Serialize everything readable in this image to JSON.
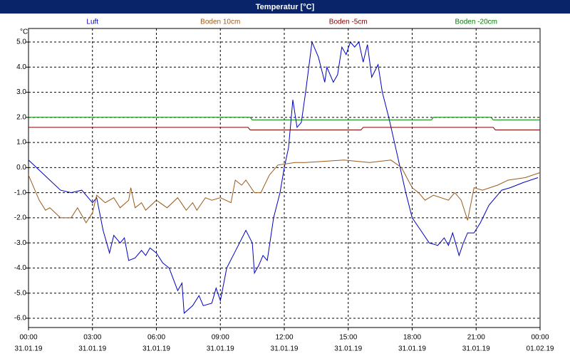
{
  "chart_data": {
    "type": "line",
    "title": "Temperatur [°C]",
    "y_unit": "°C",
    "xlim": [
      0,
      24
    ],
    "ylim": [
      -6.37,
      5.54
    ],
    "grid": true,
    "legend": "top",
    "xticks": [
      {
        "value": 0,
        "label": "00:00",
        "date": "31.01.19"
      },
      {
        "value": 3,
        "label": "03:00",
        "date": "31.01.19"
      },
      {
        "value": 6,
        "label": "06:00",
        "date": "31.01.19"
      },
      {
        "value": 9,
        "label": "09:00",
        "date": "31.01.19"
      },
      {
        "value": 12,
        "label": "12:00",
        "date": "31.01.19"
      },
      {
        "value": 15,
        "label": "15:00",
        "date": "31.01.19"
      },
      {
        "value": 18,
        "label": "18:00",
        "date": "31.01.19"
      },
      {
        "value": 21,
        "label": "21:00",
        "date": "31.01.19"
      },
      {
        "value": 24,
        "label": "00:00",
        "date": "01.02.19"
      }
    ],
    "yticks": [
      {
        "value": 5,
        "label": "5.0"
      },
      {
        "value": 4,
        "label": "4.0"
      },
      {
        "value": 3,
        "label": "3.0"
      },
      {
        "value": 2,
        "label": "2.0"
      },
      {
        "value": 1,
        "label": "1.0"
      },
      {
        "value": 0,
        "label": "0.0"
      },
      {
        "value": -1,
        "label": "-1.0"
      },
      {
        "value": -2,
        "label": "-2.0"
      },
      {
        "value": -3,
        "label": "-3.0"
      },
      {
        "value": -4,
        "label": "-4.0"
      },
      {
        "value": -5,
        "label": "-5.0"
      },
      {
        "value": -6,
        "label": "-6.0"
      }
    ],
    "series": [
      {
        "name": "Luft",
        "color": "#0000c0",
        "x": [
          0,
          0.5,
          1,
          1.5,
          2,
          2.5,
          3,
          3.2,
          3.5,
          3.8,
          4,
          4.3,
          4.5,
          4.7,
          5,
          5.3,
          5.5,
          5.7,
          6,
          6.3,
          6.6,
          7,
          7.2,
          7.3,
          7.7,
          8,
          8.2,
          8.6,
          8.8,
          9,
          9.3,
          9.6,
          9.9,
          10.2,
          10.5,
          10.6,
          10.8,
          11,
          11.2,
          11.5,
          11.8,
          12,
          12.2,
          12.4,
          12.6,
          12.8,
          13,
          13.3,
          13.6,
          13.9,
          14,
          14.3,
          14.5,
          14.7,
          14.9,
          15.1,
          15.3,
          15.5,
          15.7,
          15.9,
          16.1,
          16.4,
          16.6,
          16.9,
          17.3,
          17.7,
          18,
          18.4,
          18.8,
          19.2,
          19.5,
          19.7,
          19.9,
          20.2,
          20.4,
          20.6,
          20.9,
          21.2,
          21.6,
          22.2,
          22.6,
          23.2,
          23.9
        ],
        "values": [
          0.3,
          -0.1,
          -0.5,
          -0.9,
          -1.0,
          -0.9,
          -1.4,
          -1.2,
          -2.5,
          -3.4,
          -2.7,
          -3.0,
          -2.8,
          -3.7,
          -3.6,
          -3.3,
          -3.5,
          -3.2,
          -3.4,
          -3.8,
          -4.0,
          -4.9,
          -4.6,
          -5.8,
          -5.5,
          -5.1,
          -5.5,
          -5.4,
          -4.8,
          -5.3,
          -4.0,
          -3.5,
          -3.0,
          -2.5,
          -3.0,
          -4.2,
          -3.9,
          -3.5,
          -3.7,
          -2.0,
          -1.0,
          0.0,
          0.8,
          2.7,
          1.6,
          1.8,
          3.0,
          5.0,
          4.4,
          3.4,
          4.0,
          3.4,
          3.7,
          4.8,
          4.5,
          5.0,
          4.8,
          5.0,
          4.2,
          4.9,
          3.6,
          4.1,
          3.0,
          2.0,
          0.5,
          -1.0,
          -2.0,
          -2.5,
          -3.0,
          -3.1,
          -2.8,
          -3.1,
          -2.6,
          -3.5,
          -3.0,
          -2.6,
          -2.6,
          -2.2,
          -1.5,
          -0.9,
          -0.8,
          -0.6,
          -0.4
        ]
      },
      {
        "name": "Boden 10cm",
        "color": "#9b5a1a",
        "x": [
          0,
          0.5,
          0.8,
          1,
          1.5,
          2,
          2.3,
          2.7,
          3,
          3.2,
          3.6,
          4,
          4.3,
          4.7,
          4.8,
          5,
          5.3,
          5.5,
          6,
          6.5,
          7,
          7.4,
          7.7,
          7.9,
          8.3,
          8.6,
          9,
          9.5,
          9.7,
          10,
          10.2,
          10.6,
          10.9,
          11.3,
          11.7,
          12.5,
          13,
          14.8,
          16,
          17,
          17.5,
          18,
          18.3,
          18.6,
          19,
          19.7,
          20,
          20.3,
          20.6,
          20.9,
          21.3,
          22,
          22.5,
          23.3,
          24
        ],
        "values": [
          -0.3,
          -1.3,
          -1.7,
          -1.6,
          -2.0,
          -2.0,
          -1.6,
          -2.2,
          -1.8,
          -1.1,
          -1.4,
          -1.2,
          -1.6,
          -1.3,
          -0.8,
          -1.6,
          -1.4,
          -1.7,
          -1.3,
          -1.6,
          -1.2,
          -1.7,
          -1.4,
          -1.7,
          -1.2,
          -1.3,
          -1.2,
          -1.4,
          -0.5,
          -0.7,
          -0.5,
          -1.0,
          -1.0,
          -0.3,
          0.1,
          0.2,
          0.2,
          0.3,
          0.2,
          0.3,
          0.0,
          -0.8,
          -1.0,
          -1.3,
          -1.1,
          -1.3,
          -1.0,
          -1.3,
          -2.1,
          -0.8,
          -0.9,
          -0.7,
          -0.5,
          -0.4,
          -0.2
        ]
      },
      {
        "name": "Boden -5cm",
        "color": "#800000",
        "x": [
          0,
          10.3,
          10.4,
          15.6,
          15.7,
          21.8,
          21.9,
          24
        ],
        "values": [
          1.6,
          1.6,
          1.5,
          1.5,
          1.6,
          1.6,
          1.5,
          1.5
        ]
      },
      {
        "name": "Boden -20cm",
        "color": "#008000",
        "x": [
          0,
          10.4,
          10.5,
          18.9,
          19.0,
          21.7,
          21.8,
          24
        ],
        "values": [
          2.0,
          2.0,
          1.9,
          1.9,
          2.0,
          2.0,
          1.9,
          1.9
        ]
      }
    ]
  }
}
